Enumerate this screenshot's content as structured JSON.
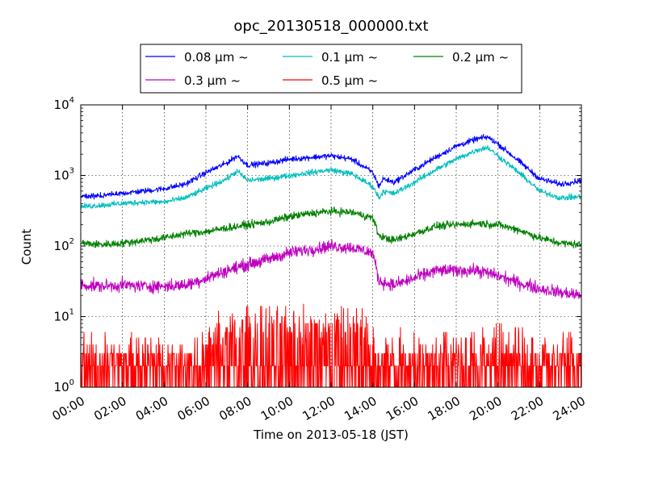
{
  "chart_data": {
    "type": "line",
    "title": "opc_20130518_000000.txt",
    "xlabel": "Time on 2013-05-18 (JST)",
    "ylabel": "Count",
    "y_scale": "log",
    "ylim": [
      1,
      10000
    ],
    "xlim_hours": [
      0,
      24
    ],
    "grid": true,
    "legend_position": "top-center",
    "x_ticks": [
      {
        "hour": 0,
        "label": "00:00"
      },
      {
        "hour": 2,
        "label": "02:00"
      },
      {
        "hour": 4,
        "label": "04:00"
      },
      {
        "hour": 6,
        "label": "06:00"
      },
      {
        "hour": 8,
        "label": "08:00"
      },
      {
        "hour": 10,
        "label": "10:00"
      },
      {
        "hour": 12,
        "label": "12:00"
      },
      {
        "hour": 14,
        "label": "14:00"
      },
      {
        "hour": 16,
        "label": "16:00"
      },
      {
        "hour": 18,
        "label": "18:00"
      },
      {
        "hour": 20,
        "label": "20:00"
      },
      {
        "hour": 22,
        "label": "22:00"
      },
      {
        "hour": 24,
        "label": "24:00"
      }
    ],
    "y_ticks": [
      {
        "value": 1,
        "base": "10",
        "exp": "0"
      },
      {
        "value": 10,
        "base": "10",
        "exp": "1"
      },
      {
        "value": 100,
        "base": "10",
        "exp": "2"
      },
      {
        "value": 1000,
        "base": "10",
        "exp": "3"
      },
      {
        "value": 10000,
        "base": "10",
        "exp": "4"
      }
    ],
    "series": [
      {
        "name": "0.08 μm ~",
        "color": "#0000ff",
        "x": [
          0,
          1,
          2,
          3,
          4,
          5,
          6,
          7,
          7.5,
          8,
          9,
          10,
          11,
          12,
          13,
          14,
          14.3,
          14.5,
          15,
          16,
          17,
          18,
          19,
          19.5,
          20,
          21,
          22,
          23,
          24
        ],
        "y": [
          500,
          520,
          560,
          600,
          650,
          750,
          1100,
          1500,
          1900,
          1400,
          1500,
          1700,
          1800,
          1900,
          1700,
          1100,
          700,
          900,
          800,
          1200,
          1800,
          2600,
          3300,
          3500,
          2800,
          1600,
          900,
          750,
          850
        ]
      },
      {
        "name": "0.1 μm ~",
        "color": "#00bfbf",
        "x": [
          0,
          1,
          2,
          3,
          4,
          5,
          6,
          7,
          7.5,
          8,
          9,
          10,
          11,
          12,
          13,
          14,
          14.3,
          14.5,
          15,
          16,
          17,
          18,
          19,
          19.5,
          20,
          21,
          22,
          23,
          24
        ],
        "y": [
          360,
          380,
          400,
          420,
          420,
          480,
          650,
          900,
          1150,
          850,
          900,
          1000,
          1100,
          1200,
          1050,
          700,
          480,
          600,
          550,
          800,
          1200,
          1700,
          2300,
          2500,
          1900,
          1100,
          600,
          480,
          500
        ]
      },
      {
        "name": "0.2 μm ~",
        "color": "#008000",
        "x": [
          0,
          1,
          2,
          3,
          4,
          5,
          6,
          7,
          8,
          9,
          10,
          11,
          12,
          13,
          14,
          14.3,
          15,
          16,
          17,
          18,
          19,
          20,
          21,
          22,
          23,
          24
        ],
        "y": [
          110,
          105,
          110,
          120,
          130,
          150,
          160,
          180,
          200,
          220,
          260,
          290,
          310,
          300,
          250,
          140,
          120,
          150,
          190,
          200,
          210,
          200,
          170,
          130,
          110,
          105
        ]
      },
      {
        "name": "0.3 μm ~",
        "color": "#bf00bf",
        "x": [
          0,
          1,
          2,
          3,
          4,
          5,
          6,
          7,
          8,
          9,
          10,
          11,
          12,
          13,
          14,
          14.3,
          15,
          16,
          17,
          18,
          19,
          20,
          21,
          22,
          23,
          24
        ],
        "y": [
          28,
          27,
          28,
          27,
          27,
          28,
          35,
          45,
          55,
          65,
          80,
          90,
          100,
          95,
          80,
          32,
          28,
          35,
          45,
          45,
          45,
          38,
          30,
          25,
          22,
          20
        ]
      },
      {
        "name": "0.5 μm ~",
        "color": "#ff0000",
        "x": [
          0,
          2,
          4,
          6,
          6.5,
          8,
          10,
          12,
          13.5,
          14,
          16,
          18,
          20,
          22,
          24
        ],
        "y": [
          2,
          2,
          2,
          2,
          4,
          4.5,
          5,
          5,
          4.5,
          2.5,
          2.5,
          2.5,
          2.5,
          2.2,
          2
        ]
      }
    ]
  }
}
